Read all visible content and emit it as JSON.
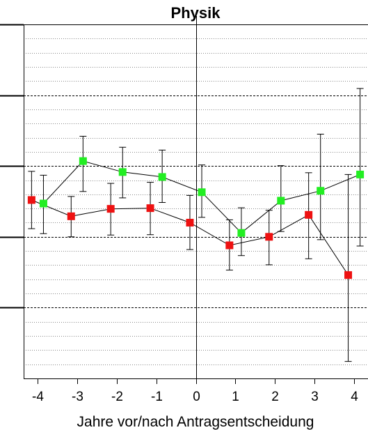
{
  "chart_data": {
    "type": "scatter",
    "title": "Physik",
    "xlabel": "Jahre vor/nach Antragsentscheidung",
    "ylabel": "",
    "x": [
      -4,
      -3,
      -2,
      -1,
      0,
      1,
      2,
      3,
      4
    ],
    "xticks": [
      "-4",
      "-3",
      "-2",
      "-1",
      "0",
      "1",
      "2",
      "3",
      "4"
    ],
    "xlim": [
      -4.35,
      4.35
    ],
    "ylim": [
      0,
      100
    ],
    "ymajor": [
      20,
      40,
      60,
      80,
      100
    ],
    "yminor_step": 4,
    "grid": true,
    "legend": "none",
    "series": [
      {
        "color": "#ee1111",
        "x_offset": -0.15,
        "values": [
          50.4,
          45.8,
          47.9,
          48.1,
          44.0,
          37.6,
          40.0,
          46.2,
          29.2
        ],
        "lower": [
          42.3,
          40.0,
          40.5,
          40.6,
          36.4,
          30.6,
          32.1,
          33.8,
          4.8
        ],
        "upper": [
          58.5,
          51.4,
          55.1,
          55.4,
          51.7,
          44.8,
          47.5,
          58.1,
          57.6
        ]
      },
      {
        "color": "#22ee22",
        "x_offset": 0.15,
        "values": [
          49.4,
          61.4,
          58.3,
          56.9,
          52.6,
          41.1,
          50.2,
          53.0,
          57.6
        ],
        "lower": [
          40.9,
          52.8,
          51.0,
          49.7,
          45.5,
          34.7,
          41.5,
          39.2,
          37.4
        ],
        "upper": [
          57.4,
          68.4,
          65.3,
          64.5,
          60.3,
          48.2,
          60.1,
          69.0,
          81.9
        ]
      }
    ],
    "reference_line_x": 0
  }
}
